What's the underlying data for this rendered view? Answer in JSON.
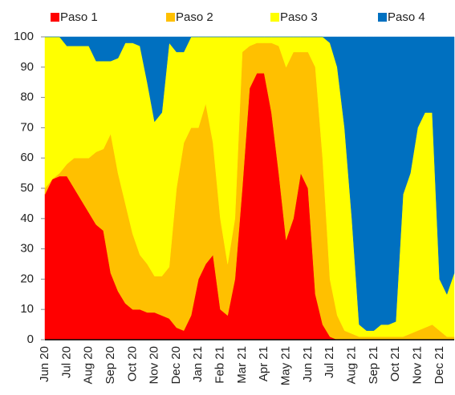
{
  "chart_data": {
    "type": "area",
    "stacked": true,
    "categories": [
      "Jun 20",
      null,
      null,
      "Jul 20",
      null,
      null,
      "Aug 20",
      null,
      null,
      "Sep 20",
      null,
      null,
      "Oct 20",
      null,
      null,
      "Nov 20",
      null,
      null,
      "Dec 20",
      null,
      null,
      "Jan 21",
      null,
      null,
      "Feb 21",
      null,
      null,
      "Mar 21",
      null,
      null,
      "Apr 21",
      null,
      null,
      "May 21",
      null,
      null,
      "Jun 21",
      null,
      null,
      "Jul 21",
      null,
      null,
      "Aug 21",
      null,
      null,
      "Sep 21",
      null,
      null,
      "Oct 21",
      null,
      null,
      "Nov 21",
      null,
      null,
      "Dec 21",
      null,
      null
    ],
    "series": [
      {
        "name": "Paso 1",
        "color": "#ff0000",
        "values": [
          48,
          53,
          54,
          54,
          50,
          46,
          42,
          38,
          36,
          22,
          16,
          12,
          10,
          10,
          9,
          9,
          8,
          7,
          4,
          3,
          8,
          20,
          25,
          28,
          10,
          8,
          20,
          50,
          83,
          88,
          88,
          75,
          55,
          33,
          40,
          55,
          50,
          15,
          5,
          1,
          0,
          0,
          0,
          0,
          0,
          0,
          0,
          0,
          0,
          0,
          0,
          0,
          0,
          0,
          0,
          0,
          0
        ]
      },
      {
        "name": "Paso 2",
        "color": "#ffc000",
        "values": [
          2,
          0,
          1,
          4,
          10,
          14,
          18,
          24,
          27,
          46,
          39,
          33,
          25,
          18,
          16,
          12,
          13,
          17,
          46,
          62,
          62,
          50,
          53,
          37,
          30,
          17,
          20,
          45,
          14,
          10,
          10,
          23,
          42,
          57,
          55,
          40,
          45,
          75,
          55,
          19,
          8,
          3,
          2,
          1,
          1,
          1,
          1,
          1,
          1,
          1,
          2,
          3,
          4,
          5,
          3,
          1,
          1
        ]
      },
      {
        "name": "Paso 3",
        "color": "#ffff00",
        "values": [
          50,
          47,
          45,
          39,
          37,
          37,
          37,
          30,
          29,
          24,
          38,
          53,
          63,
          69,
          60,
          51,
          54,
          74,
          45,
          30,
          30,
          30,
          22,
          35,
          60,
          75,
          60,
          5,
          3,
          2,
          2,
          2,
          3,
          10,
          5,
          5,
          5,
          10,
          40,
          78,
          82,
          67,
          38,
          4,
          2,
          2,
          4,
          4,
          5,
          47,
          53,
          67,
          71,
          70,
          17,
          14,
          21
        ]
      },
      {
        "name": "Paso 4",
        "color": "#0070c0",
        "values": [
          0,
          0,
          0,
          3,
          3,
          3,
          3,
          8,
          8,
          8,
          7,
          2,
          2,
          3,
          15,
          28,
          25,
          2,
          5,
          5,
          0,
          0,
          0,
          0,
          0,
          0,
          0,
          0,
          0,
          0,
          0,
          0,
          0,
          0,
          0,
          0,
          0,
          0,
          0,
          2,
          10,
          30,
          60,
          95,
          97,
          97,
          95,
          95,
          94,
          52,
          45,
          30,
          25,
          25,
          80,
          85,
          78
        ]
      }
    ],
    "ylim": [
      0,
      100
    ],
    "yticks": [
      0,
      10,
      20,
      30,
      40,
      50,
      60,
      70,
      80,
      90,
      100
    ],
    "grid": false,
    "legend": "top"
  }
}
